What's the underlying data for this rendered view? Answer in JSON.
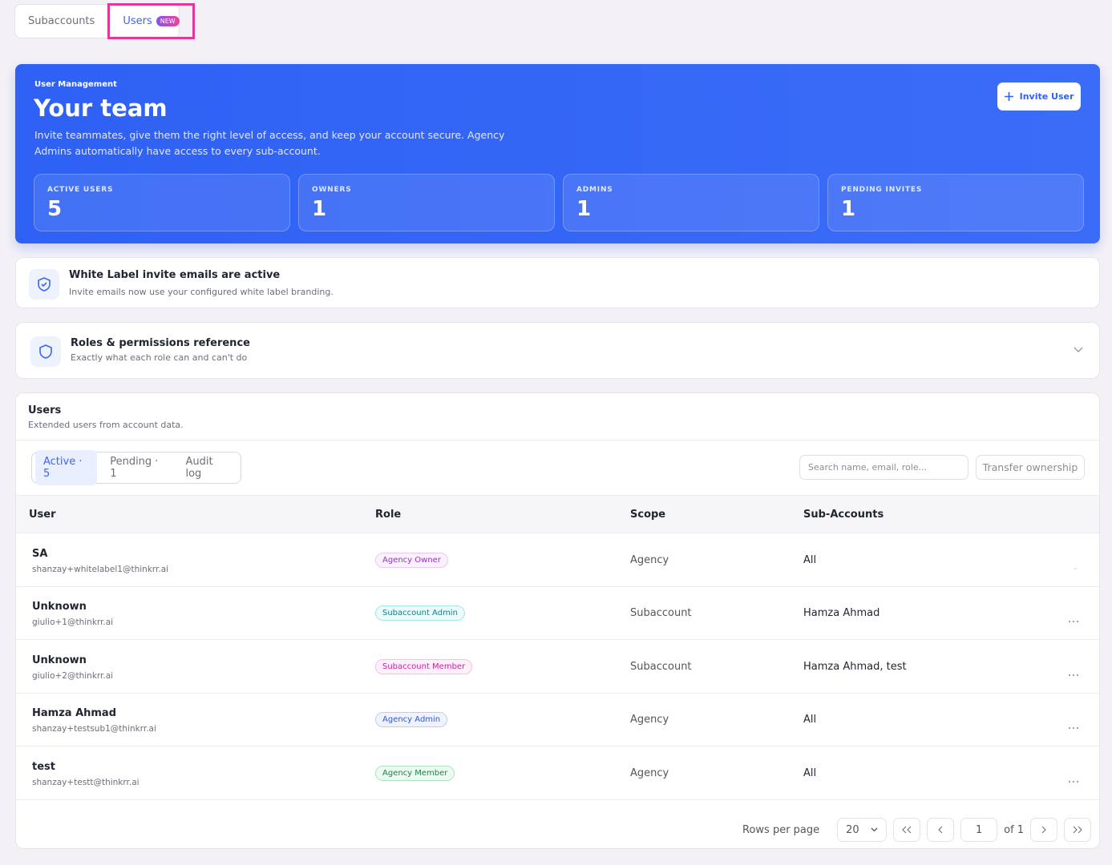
{
  "tabs": [
    {
      "label": "Subaccounts"
    },
    {
      "label": "Users",
      "badge": "NEW"
    }
  ],
  "hero": {
    "eyebrow": "User Management",
    "title": "Your team",
    "description": "Invite teammates, give them the right level of access, and keep your account secure. Agency Admins automatically have access to every sub-account.",
    "button": "Invite User",
    "stats": [
      {
        "label": "ACTIVE USERS",
        "value": 5
      },
      {
        "label": "OWNERS",
        "value": 1
      },
      {
        "label": "ADMINS",
        "value": 1
      },
      {
        "label": "PENDING INVITES",
        "value": 1
      }
    ]
  },
  "notice": {
    "title": "White Label invite emails are active",
    "text": "Invite emails now use your configured white label branding."
  },
  "roles": {
    "title": "Roles & permissions reference",
    "subtitle": "Exactly what each role can and can't do"
  },
  "users": {
    "title": "Users",
    "subtitle": "Extended users from account data.",
    "filters": [
      "Active · 5",
      "Pending · 1",
      "Audit log"
    ],
    "search_placeholder": "Search name, email, role...",
    "transfer": "Transfer ownership",
    "columns": [
      "User",
      "Role",
      "Scope",
      "Sub-Accounts"
    ],
    "rows": [
      {
        "name": "SA",
        "email": "shanzay+whitelabel1@thinkrr.ai",
        "role": "Agency Owner",
        "scope": "Agency",
        "subaccounts": "All"
      },
      {
        "name": "Unknown",
        "email": "giulio+1@thinkrr.ai",
        "role": "Subaccount Admin",
        "scope": "Subaccount",
        "subaccounts": "Hamza Ahmad"
      },
      {
        "name": "Unknown",
        "email": "giulio+2@thinkrr.ai",
        "role": "Subaccount Member",
        "scope": "Subaccount",
        "subaccounts": "Hamza Ahmad, test"
      },
      {
        "name": "Hamza Ahmad",
        "email": "shanzay+testsub1@thinkrr.ai",
        "role": "Agency Admin",
        "scope": "Agency",
        "subaccounts": "All"
      },
      {
        "name": "test",
        "email": "shanzay+testt@thinkrr.ai",
        "role": "Agency Member",
        "scope": "Agency",
        "subaccounts": "All"
      }
    ],
    "pagination": {
      "rows_per_page_label": "Rows per page",
      "rows_per_page": "20",
      "page": "1",
      "of": "of 1"
    }
  }
}
